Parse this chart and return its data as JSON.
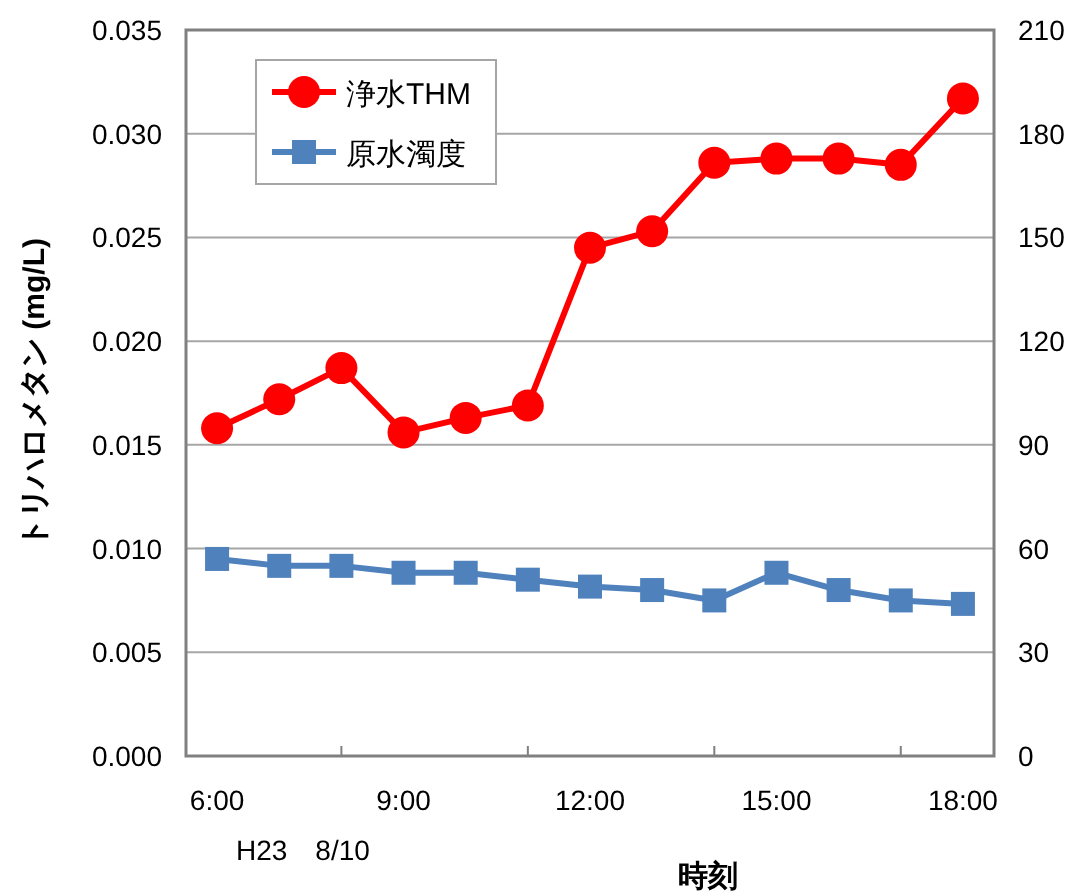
{
  "chart_data": {
    "type": "line",
    "xlabel": "時刻",
    "ylabel": "トリハロメタン (mg/L)",
    "annotations": [
      "H23　8/10"
    ],
    "categories": [
      "6:00",
      null,
      null,
      "9:00",
      null,
      null,
      "12:00",
      null,
      null,
      "15:00",
      null,
      null,
      "18:00"
    ],
    "series": [
      {
        "name": "浄水THM",
        "color": "#ff0000",
        "marker": "circle",
        "values": [
          0.0158,
          0.0172,
          0.0187,
          0.0156,
          0.0163,
          0.0169,
          0.0245,
          0.0253,
          0.0286,
          0.0288,
          0.0288,
          0.0285,
          0.0317
        ]
      },
      {
        "name": "原水濁度",
        "color": "#4f81bd",
        "marker": "square",
        "axis": "y2",
        "values": [
          57,
          55,
          55,
          53,
          53,
          51,
          49,
          48,
          45,
          53,
          48,
          45,
          44
        ]
      }
    ],
    "ylim": [
      0,
      0.035
    ],
    "yticks": [
      {
        "value": 0,
        "label": "0.000"
      },
      {
        "value": 0.005,
        "label": "0.005"
      },
      {
        "value": 0.01,
        "label": "0.010"
      },
      {
        "value": 0.015,
        "label": "0.015"
      },
      {
        "value": 0.02,
        "label": "0.020"
      },
      {
        "value": 0.025,
        "label": "0.025"
      },
      {
        "value": 0.03,
        "label": "0.030"
      },
      {
        "value": 0.035,
        "label": "0.035"
      }
    ],
    "y2lim": [
      0,
      210
    ],
    "y2ticks": [
      0,
      30,
      60,
      90,
      120,
      150,
      180,
      210
    ],
    "grid": "y",
    "legend": "top left"
  }
}
